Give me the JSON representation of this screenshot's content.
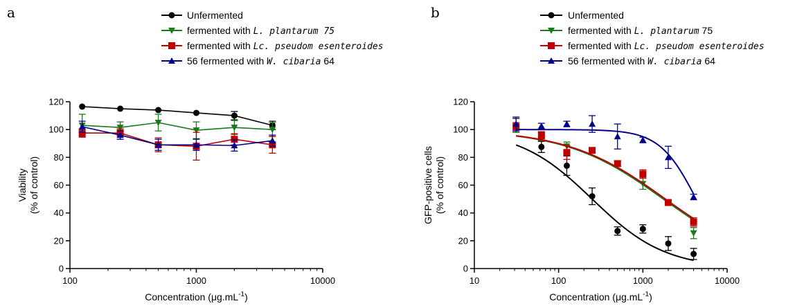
{
  "colors": {
    "unfermented": "#000000",
    "plantarum": "#1a7a1a",
    "pseudomesenteroides": "#c00000",
    "cibaria": "#00008b"
  },
  "chart_data": [
    {
      "id": "a",
      "panel_label": "a",
      "type": "line",
      "xscale": "log",
      "xlim": [
        100,
        10000
      ],
      "ylim": [
        0,
        120
      ],
      "xticks": [
        "100",
        "1000",
        "10000"
      ],
      "yticks": [
        "0",
        "20",
        "40",
        "60",
        "80",
        "100",
        "120"
      ],
      "xlabel": "Concentration (μg.mL",
      "xlabel_sup": "-1",
      "xlabel_tail": ")",
      "ylabel": "Viability",
      "ylabel2": "(% of control)",
      "legend": [
        {
          "series": 0,
          "pre": "Unfermented",
          "ital": "",
          "post": ""
        },
        {
          "series": 1,
          "pre": "fermented with ",
          "ital": "L. plantarum 75",
          "post": ""
        },
        {
          "series": 2,
          "pre": "fermented with ",
          "ital": "Lc. pseudom esenteroides",
          "post": ""
        },
        {
          "series": 3,
          "pre": "56 fermented with ",
          "ital": "W. cibaria",
          "post": " 64"
        }
      ],
      "series": [
        {
          "key": "unfermented",
          "marker": "circle",
          "x": [
            125,
            250,
            500,
            1000,
            2000,
            4000
          ],
          "y": [
            116.5,
            115,
            114,
            112,
            110,
            103
          ],
          "err": [
            0,
            0,
            0,
            0,
            3,
            3
          ]
        },
        {
          "key": "plantarum",
          "marker": "triangle-down",
          "x": [
            125,
            250,
            500,
            1000,
            2000,
            4000
          ],
          "y": [
            103,
            101.5,
            105,
            99.5,
            101.5,
            100
          ],
          "err": [
            8,
            4,
            6,
            6,
            5,
            5
          ]
        },
        {
          "key": "pseudomesenteroides",
          "marker": "square",
          "x": [
            125,
            250,
            500,
            1000,
            2000,
            4000
          ],
          "y": [
            97.5,
            97.5,
            89,
            88,
            93,
            89
          ],
          "err": [
            3,
            3,
            5,
            10,
            4,
            6
          ]
        },
        {
          "key": "cibaria",
          "marker": "triangle-up",
          "x": [
            125,
            250,
            500,
            1000,
            2000,
            4000
          ],
          "y": [
            102,
            96,
            89,
            89,
            88.5,
            92
          ],
          "err": [
            4,
            3,
            4,
            4,
            4,
            4
          ]
        }
      ]
    },
    {
      "id": "b",
      "panel_label": "b",
      "type": "scatter",
      "xscale": "log",
      "xlim": [
        10,
        10000
      ],
      "ylim": [
        0,
        120
      ],
      "xticks": [
        "10",
        "100",
        "1000",
        "10000"
      ],
      "yticks": [
        "0",
        "20",
        "40",
        "60",
        "80",
        "100",
        "120"
      ],
      "xlabel": "Concentration (μg.mL",
      "xlabel_sup": "-1",
      "xlabel_tail": ")",
      "ylabel": "GFP-positive cells",
      "ylabel2": "(% of control)",
      "legend": [
        {
          "series": 0,
          "pre": "Unfermented",
          "ital": "",
          "post": ""
        },
        {
          "series": 1,
          "pre": "fermented with ",
          "ital": "L. plantarum",
          "post": " 75"
        },
        {
          "series": 2,
          "pre": "fermented with ",
          "ital": "Lc. pseudom esenteroides",
          "post": ""
        },
        {
          "series": 3,
          "pre": "56 fermented with ",
          "ital": "W. cibaria",
          "post": " 64"
        }
      ],
      "series": [
        {
          "key": "unfermented",
          "marker": "circle",
          "x": [
            31.25,
            62.5,
            125,
            250,
            500,
            1000,
            2000,
            4000
          ],
          "y": [
            103,
            87.5,
            74,
            52,
            27,
            28.5,
            18,
            10.5
          ],
          "err": [
            5,
            4,
            7,
            6,
            3,
            3,
            5,
            4
          ],
          "fit": {
            "top": 100,
            "bottom": 0,
            "ic50": 250,
            "hill": 1.0
          }
        },
        {
          "key": "plantarum",
          "marker": "triangle-down",
          "x": [
            31.25,
            62.5,
            125,
            250,
            500,
            1000,
            2000,
            4000
          ],
          "y": [
            101,
            95,
            88,
            85,
            75.5,
            61,
            47.5,
            25.5
          ],
          "err": [
            3,
            3,
            3,
            2,
            2,
            4,
            2,
            4
          ],
          "fit": {
            "top": 100,
            "bottom": 0,
            "ic50": 1750,
            "hill": 0.75
          }
        },
        {
          "key": "pseudomesenteroides",
          "marker": "square",
          "x": [
            31.25,
            62.5,
            125,
            250,
            500,
            1000,
            2000,
            4000
          ],
          "y": [
            102,
            95.5,
            83.5,
            85,
            75.5,
            68,
            47.5,
            33.5
          ],
          "err": [
            3,
            3,
            5,
            2,
            2,
            3,
            2,
            3
          ],
          "fit": {
            "top": 100,
            "bottom": 0,
            "ic50": 1850,
            "hill": 0.75
          }
        },
        {
          "key": "cibaria",
          "marker": "triangle-up",
          "x": [
            31.25,
            62.5,
            125,
            250,
            500,
            1000,
            2000,
            4000
          ],
          "y": [
            104,
            102.5,
            104,
            104,
            95,
            92.5,
            80,
            51.5
          ],
          "err": [
            5,
            2,
            2,
            6,
            9,
            2,
            8,
            2
          ],
          "fit": {
            "top": 100,
            "bottom": 0,
            "ic50": 4300,
            "hill": 2.0
          }
        }
      ]
    }
  ]
}
